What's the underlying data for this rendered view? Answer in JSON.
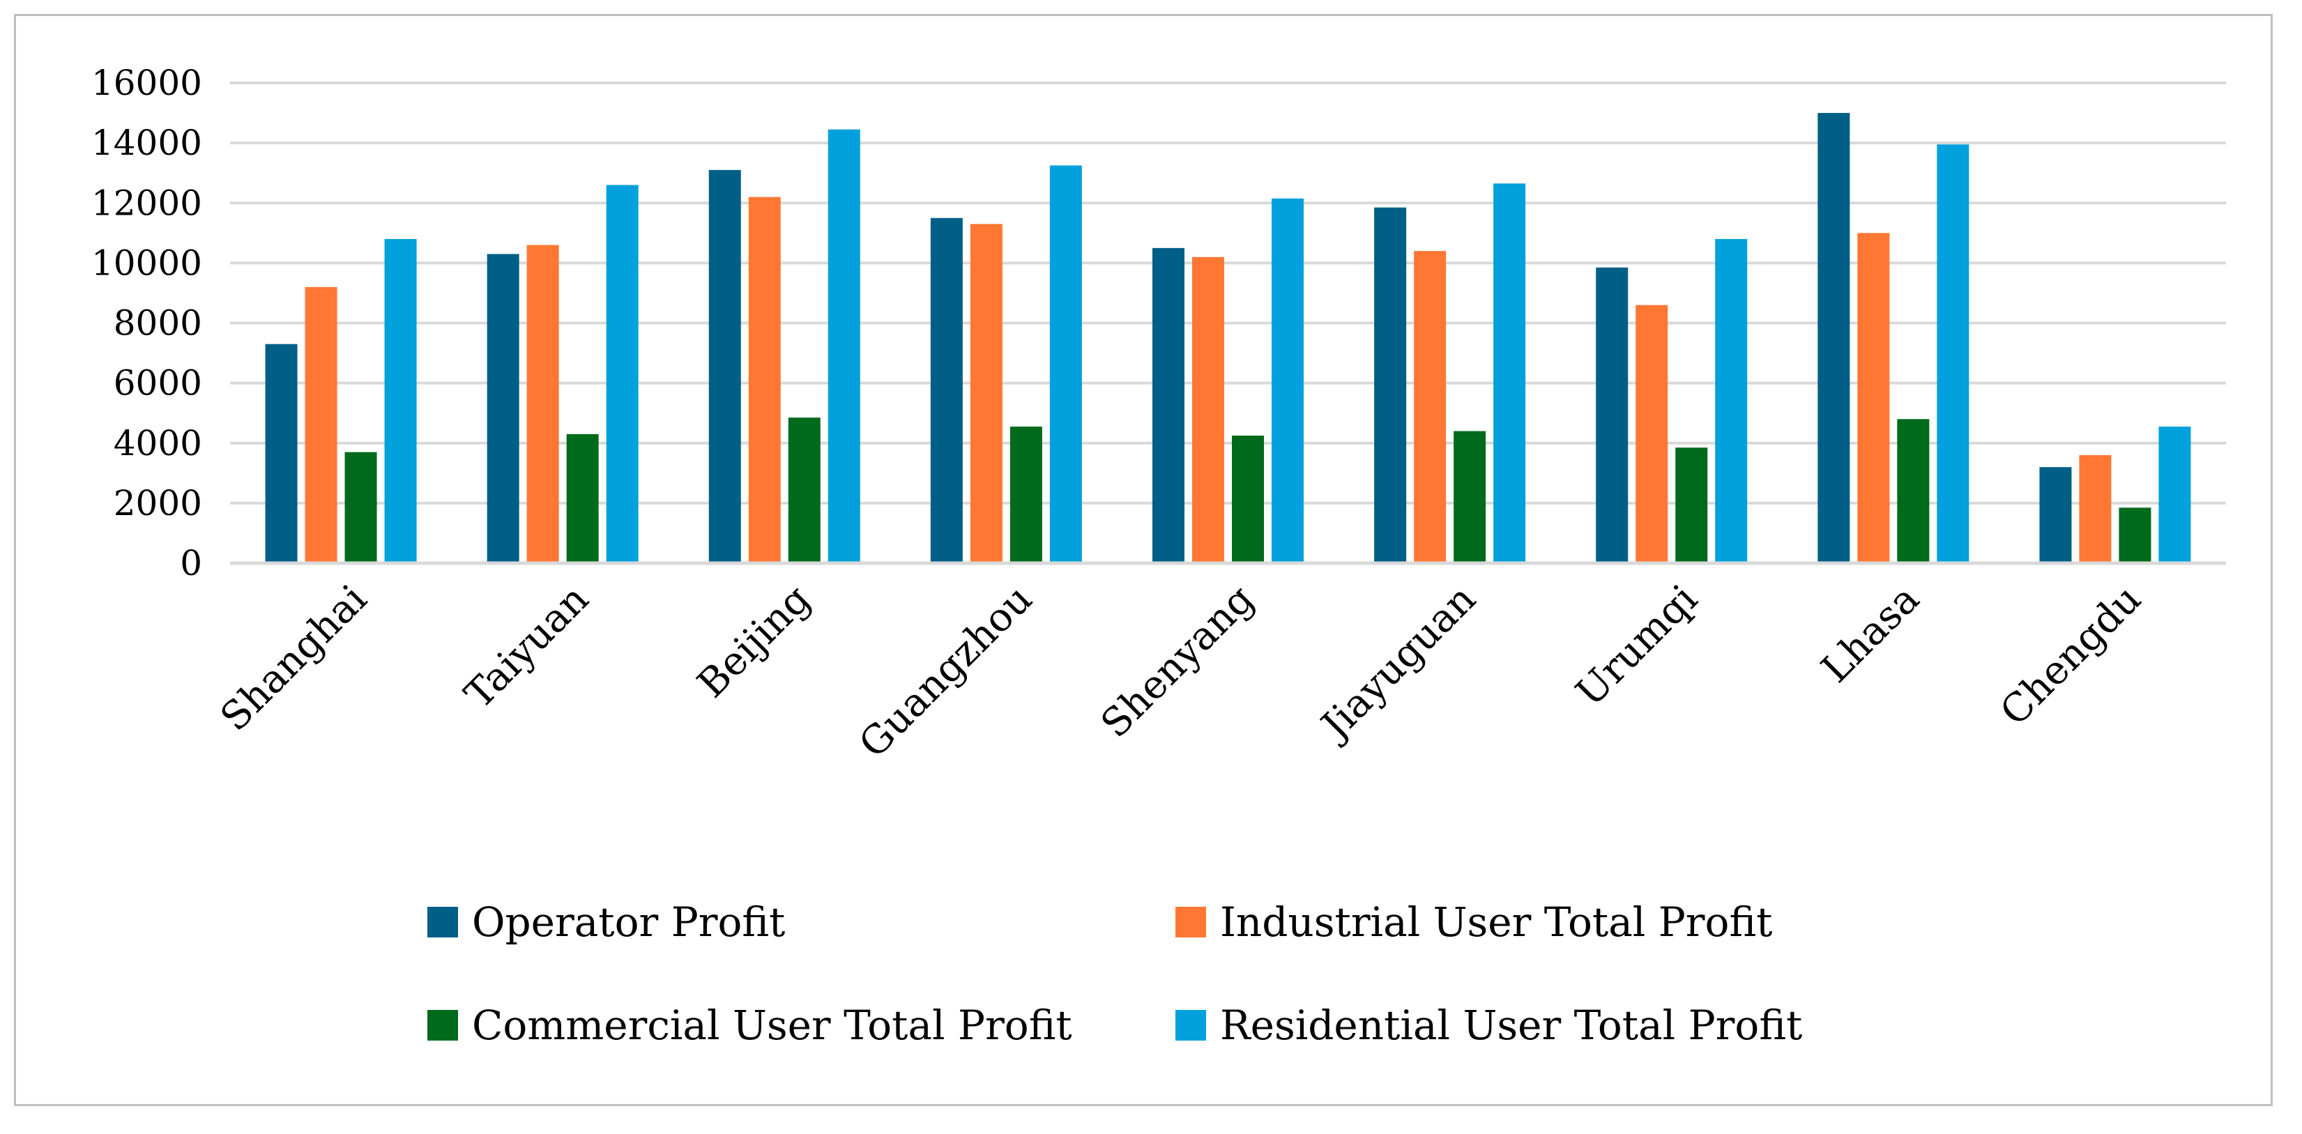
{
  "chart_data": {
    "type": "bar",
    "title": "",
    "xlabel": "",
    "ylabel": "",
    "ylim": [
      0,
      16000
    ],
    "yticks": [
      "0",
      "2000",
      "4000",
      "6000",
      "8000",
      "10000",
      "12000",
      "14000",
      "16000"
    ],
    "grid": true,
    "legend_position": "bottom",
    "categories": [
      "Shanghai",
      "Taiyuan",
      "Beijing",
      "Guangzhou",
      "Shenyang",
      "Jiayuguan",
      "Urumqi",
      "Lhasa",
      "Chengdu"
    ],
    "series": [
      {
        "name": "Operator Profit",
        "color": "#005f86",
        "values": [
          7300,
          10300,
          13100,
          11500,
          10500,
          11850,
          9850,
          15000,
          3200
        ]
      },
      {
        "name": "Industrial User Total Profit",
        "color": "#ff7733",
        "values": [
          9200,
          10600,
          12200,
          11300,
          10200,
          10400,
          8600,
          11000,
          3600
        ]
      },
      {
        "name": "Commercial User Total Profit",
        "color": "#006a1c",
        "values": [
          3700,
          4300,
          4850,
          4550,
          4250,
          4400,
          3850,
          4800,
          1850
        ]
      },
      {
        "name": "Residential User Total Profit",
        "color": "#00a1dc",
        "values": [
          10800,
          12600,
          14450,
          13250,
          12150,
          12650,
          10800,
          13950,
          4550
        ]
      }
    ]
  }
}
